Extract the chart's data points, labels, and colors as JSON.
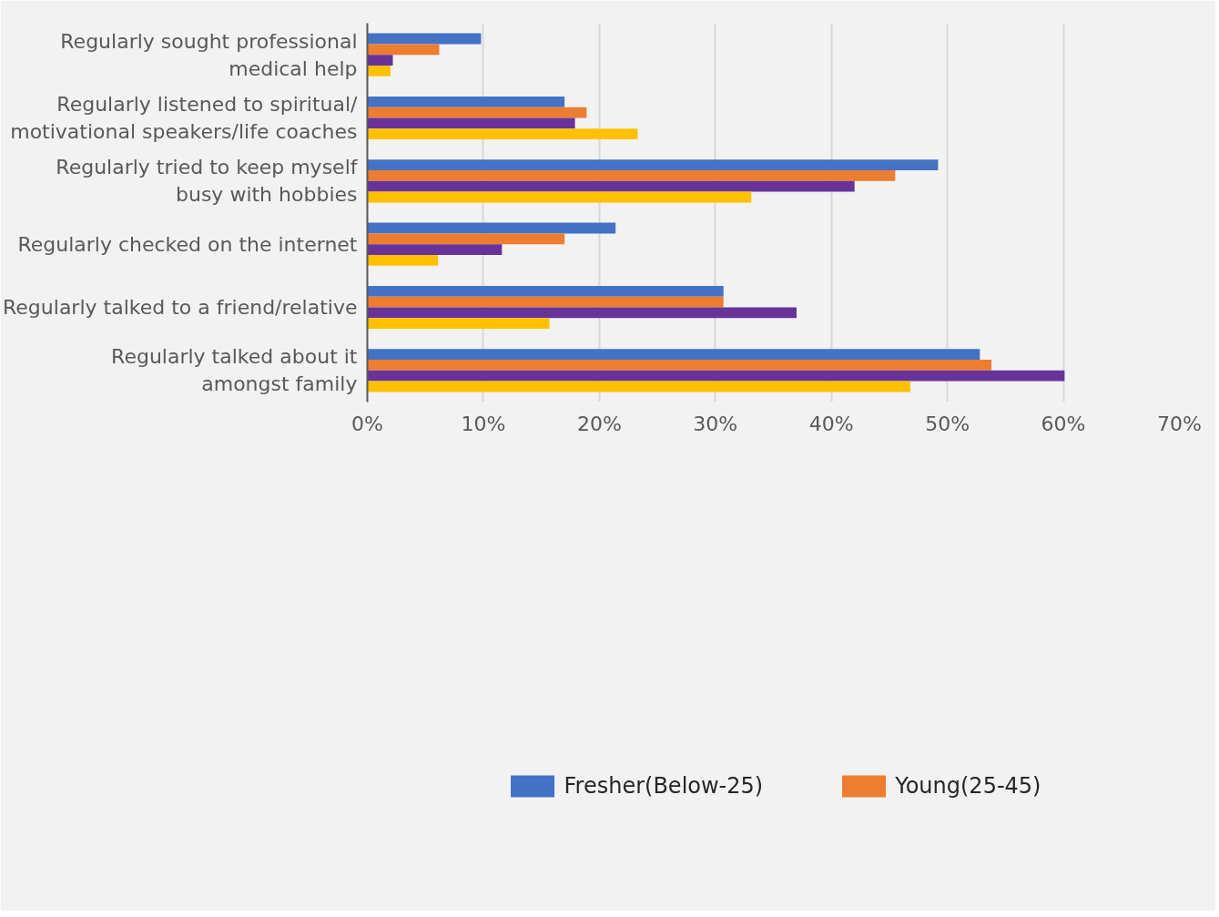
{
  "chart_data": {
    "type": "bar",
    "orientation": "horizontal",
    "categories": [
      "Regularly sought professional\nmedical help",
      "Regularly listened to spiritual/\nmotivational speakers/life coaches",
      "Regularly tried to keep myself\nbusy with hobbies",
      "Regularly checked on the internet",
      "Regularly talked to a friend/relative",
      "Regularly talked about it\namongst family"
    ],
    "series": [
      {
        "name": "Fresher(Below-25)",
        "color": "#4472c4",
        "values": [
          9.8,
          17.0,
          49.2,
          21.4,
          30.7,
          52.8
        ]
      },
      {
        "name": "Young(25-45)",
        "color": "#ed7d31",
        "values": [
          6.2,
          18.9,
          45.5,
          17.0,
          30.7,
          53.8
        ]
      },
      {
        "color": "#673399",
        "values": [
          2.2,
          17.9,
          42.0,
          11.6,
          37.0,
          60.1
        ]
      },
      {
        "color": "#ffc000",
        "values": [
          2.0,
          23.3,
          33.1,
          6.1,
          15.7,
          46.8
        ]
      }
    ],
    "xlim": [
      0,
      70
    ],
    "xticks": [
      {
        "value": 0,
        "label": "0%"
      },
      {
        "value": 10,
        "label": "10%"
      },
      {
        "value": 20,
        "label": "20%"
      },
      {
        "value": 30,
        "label": "30%"
      },
      {
        "value": 40,
        "label": "40%"
      },
      {
        "value": 50,
        "label": "50%"
      },
      {
        "value": 60,
        "label": "60%"
      },
      {
        "value": 70,
        "label": "70%"
      }
    ],
    "grid": "x",
    "legend": "bottom"
  }
}
